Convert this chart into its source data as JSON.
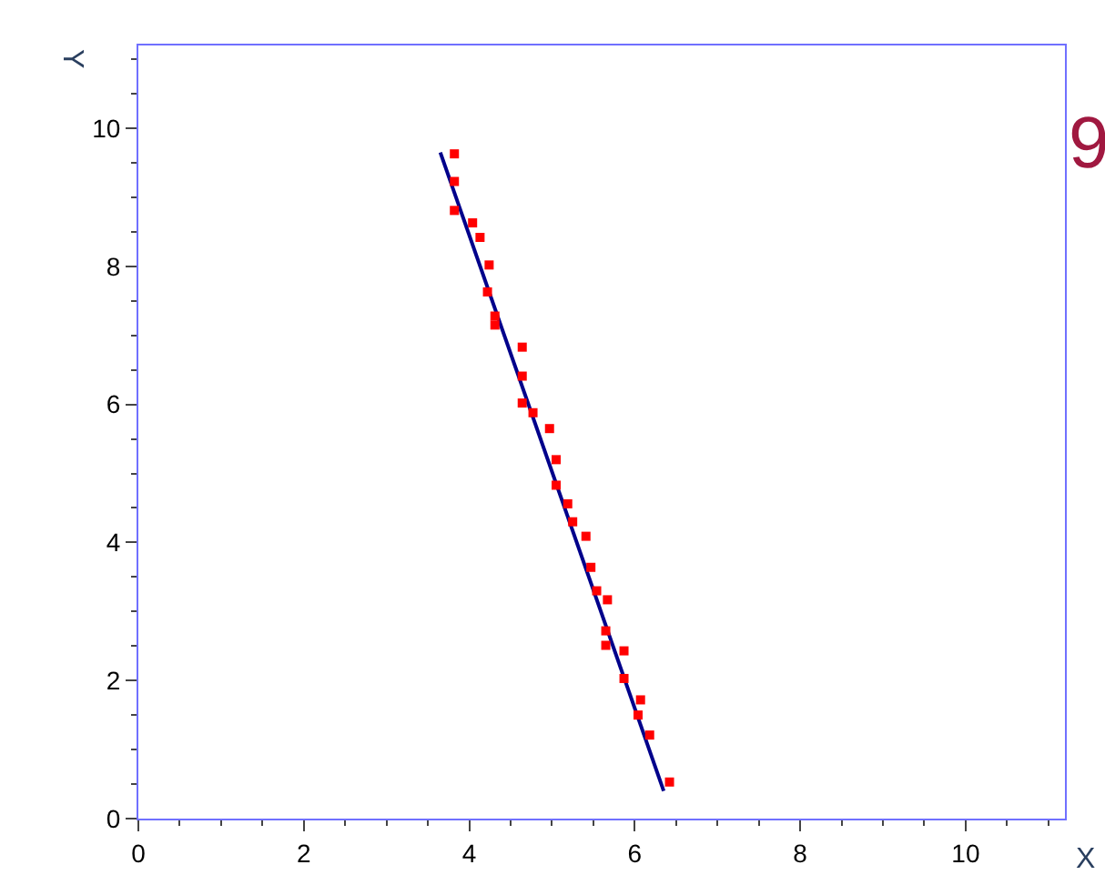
{
  "chart_data": {
    "type": "scatter",
    "xlabel": "X",
    "ylabel": "Y",
    "annotations": [
      "9"
    ],
    "xlim": [
      0,
      11.2
    ],
    "ylim": [
      0,
      11.2
    ],
    "xticks": [
      0,
      2,
      4,
      6,
      8,
      10
    ],
    "yticks": [
      0,
      2,
      4,
      6,
      8,
      10
    ],
    "series": [
      {
        "type": "line",
        "color": "#00008b",
        "x": [
          3.65,
          6.35
        ],
        "values": [
          9.65,
          0.4
        ]
      },
      {
        "marker": "square",
        "color": "#ff0000",
        "x": [
          3.82,
          3.82,
          3.82,
          4.04,
          4.13,
          4.24,
          4.22,
          4.31,
          4.31,
          4.64,
          4.64,
          4.64,
          4.77,
          4.97,
          5.05,
          5.05,
          5.19,
          5.25,
          5.41,
          5.47,
          5.54,
          5.67,
          5.65,
          5.65,
          5.87,
          5.87,
          6.07,
          6.04,
          6.18,
          6.42
        ],
        "values": [
          9.63,
          9.23,
          8.81,
          8.63,
          8.42,
          8.02,
          7.63,
          7.28,
          7.15,
          6.83,
          6.41,
          6.02,
          5.88,
          5.65,
          5.2,
          4.83,
          4.56,
          4.3,
          4.09,
          3.64,
          3.3,
          3.17,
          2.72,
          2.51,
          2.43,
          2.03,
          1.72,
          1.5,
          1.21,
          0.53
        ]
      }
    ]
  }
}
